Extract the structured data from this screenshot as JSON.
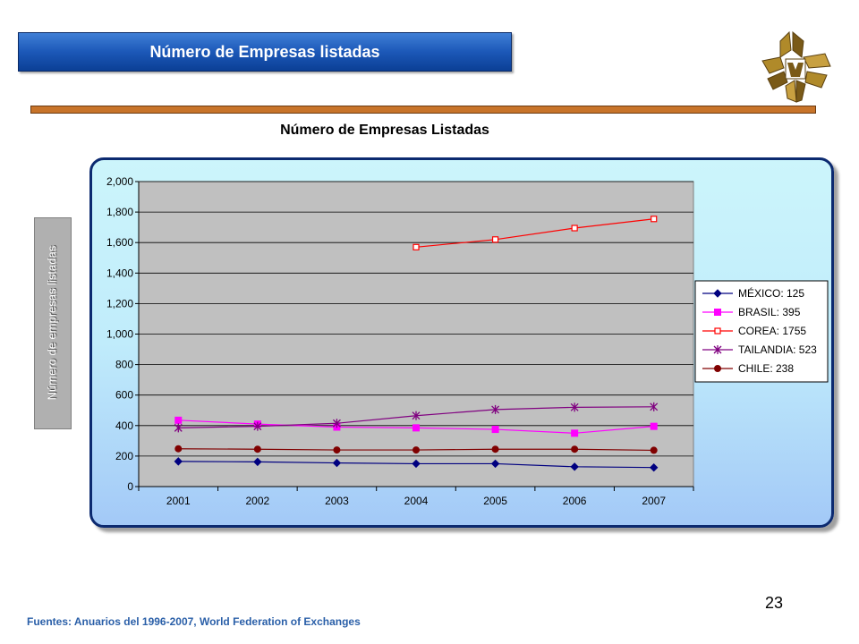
{
  "header": {
    "banner_title": "Número de Empresas listadas"
  },
  "colors": {
    "banner": "#1c58b8",
    "divider": "#c8742a",
    "plot_bg": "#c0c0c0",
    "panel_bg": "#c0ecfb",
    "logo_gold": "#b08a2a"
  },
  "side_label": "Número de empresas listadas",
  "footer": {
    "source": "Fuentes: Anuarios del 1996-2007, World Federation of Exchanges",
    "page_number": "23"
  },
  "chart_data": {
    "type": "line",
    "title": "Número de Empresas Listadas",
    "xlabel": "",
    "ylabel": "",
    "categories": [
      "2001",
      "2002",
      "2003",
      "2004",
      "2005",
      "2006",
      "2007"
    ],
    "ylim": [
      0,
      2000
    ],
    "yticks": [
      0,
      200,
      400,
      600,
      800,
      1000,
      1200,
      1400,
      1600,
      1800,
      2000
    ],
    "ytick_labels": [
      "0",
      "200",
      "400",
      "600",
      "800",
      "1,000",
      "1,200",
      "1,400",
      "1,600",
      "1,800",
      "2,000"
    ],
    "grid": true,
    "legend_position": "right",
    "series": [
      {
        "name": "MÉXICO: 125",
        "color": "#000080",
        "marker": "diamond",
        "values": [
          165,
          162,
          155,
          150,
          150,
          130,
          125
        ]
      },
      {
        "name": "BRASIL: 395",
        "color": "#ff00ff",
        "marker": "square",
        "values": [
          435,
          410,
          390,
          385,
          375,
          350,
          395
        ]
      },
      {
        "name": "COREA: 1755",
        "color": "#ff0000",
        "marker": "open-square",
        "values": [
          null,
          null,
          null,
          1570,
          1620,
          1695,
          1755
        ]
      },
      {
        "name": "TAILANDIA: 523",
        "color": "#800080",
        "marker": "asterisk",
        "values": [
          385,
          395,
          415,
          465,
          505,
          520,
          523
        ]
      },
      {
        "name": "CHILE: 238",
        "color": "#800000",
        "marker": "circle",
        "values": [
          248,
          245,
          240,
          240,
          245,
          245,
          238
        ]
      }
    ]
  }
}
